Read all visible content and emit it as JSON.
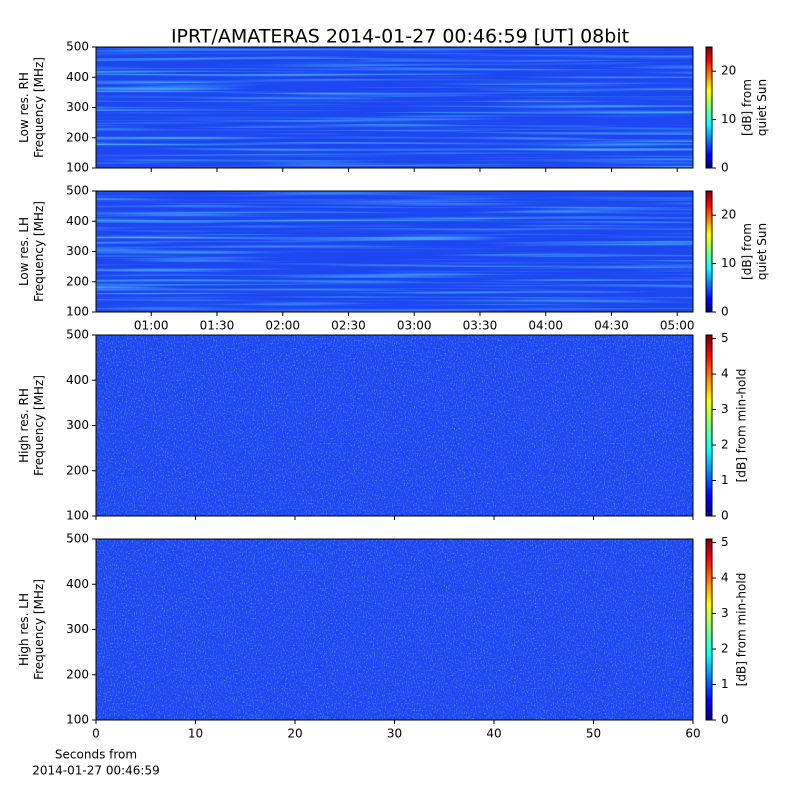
{
  "chart_data": [
    {
      "type": "spectrogram",
      "title": "IPRT/AMATERAS 2014-01-27 00:46:59 [UT]   08bit",
      "ylabel": [
        "Low res. RH",
        "Frequency [MHz]"
      ],
      "ylim": [
        100,
        500
      ],
      "yticks": [
        100,
        200,
        300,
        400,
        500
      ],
      "xlim": [
        0.58,
        5.12
      ],
      "xticks": [
        {
          "value": 1,
          "label": "01:00"
        },
        {
          "value": 1.5,
          "label": "01:30"
        },
        {
          "value": 2,
          "label": "02:00"
        },
        {
          "value": 2.5,
          "label": "02:30"
        },
        {
          "value": 3,
          "label": "03:00"
        },
        {
          "value": 3.5,
          "label": "03:30"
        },
        {
          "value": 4,
          "label": "04:00"
        },
        {
          "value": 4.5,
          "label": "04:30"
        },
        {
          "value": 5,
          "label": "05:00"
        }
      ],
      "xtick_labels": false,
      "colorbar": {
        "label": [
          "[dB] from",
          "quiet Sun"
        ],
        "clim": [
          0,
          25
        ],
        "ticks": [
          0,
          10,
          20
        ],
        "colormap": "jet"
      }
    },
    {
      "type": "spectrogram",
      "ylabel": [
        "Low res. LH",
        "Frequency [MHz]"
      ],
      "ylim": [
        100,
        500
      ],
      "yticks": [
        100,
        200,
        300,
        400,
        500
      ],
      "xlim": [
        0.58,
        5.12
      ],
      "xticks": [
        {
          "value": 1,
          "label": "01:00"
        },
        {
          "value": 1.5,
          "label": "01:30"
        },
        {
          "value": 2,
          "label": "02:00"
        },
        {
          "value": 2.5,
          "label": "02:30"
        },
        {
          "value": 3,
          "label": "03:00"
        },
        {
          "value": 3.5,
          "label": "03:30"
        },
        {
          "value": 4,
          "label": "04:00"
        },
        {
          "value": 4.5,
          "label": "04:30"
        },
        {
          "value": 5,
          "label": "05:00"
        }
      ],
      "xtick_labels": true,
      "colorbar": {
        "label": [
          "[dB] from",
          "quiet Sun"
        ],
        "clim": [
          0,
          25
        ],
        "ticks": [
          0,
          10,
          20
        ],
        "colormap": "jet"
      }
    },
    {
      "type": "spectrogram",
      "ylabel": [
        "High res. RH",
        "Frequency [MHz]"
      ],
      "ylim": [
        100,
        500
      ],
      "yticks": [
        100,
        200,
        300,
        400,
        500
      ],
      "xlim": [
        0,
        60
      ],
      "xticks": [
        0,
        10,
        20,
        30,
        40,
        50,
        60
      ],
      "xtick_labels": false,
      "colorbar": {
        "label": [
          "[dB] from min-hold"
        ],
        "clim": [
          0,
          5.1
        ],
        "ticks": [
          0,
          1,
          2,
          3,
          4,
          5
        ],
        "colormap": "jet"
      }
    },
    {
      "type": "spectrogram",
      "ylabel": [
        "High res. LH",
        "Frequency [MHz]"
      ],
      "ylim": [
        100,
        500
      ],
      "yticks": [
        100,
        200,
        300,
        400,
        500
      ],
      "xlim": [
        0,
        60
      ],
      "xticks": [
        0,
        10,
        20,
        30,
        40,
        50,
        60
      ],
      "xtick_labels": true,
      "xlabel": [
        "Seconds from",
        "2014-01-27 00:46:59"
      ],
      "colorbar": {
        "label": [
          "[dB] from min-hold"
        ],
        "clim": [
          0,
          5.1
        ],
        "ticks": [
          0,
          1,
          2,
          3,
          4,
          5
        ],
        "colormap": "jet"
      }
    }
  ]
}
